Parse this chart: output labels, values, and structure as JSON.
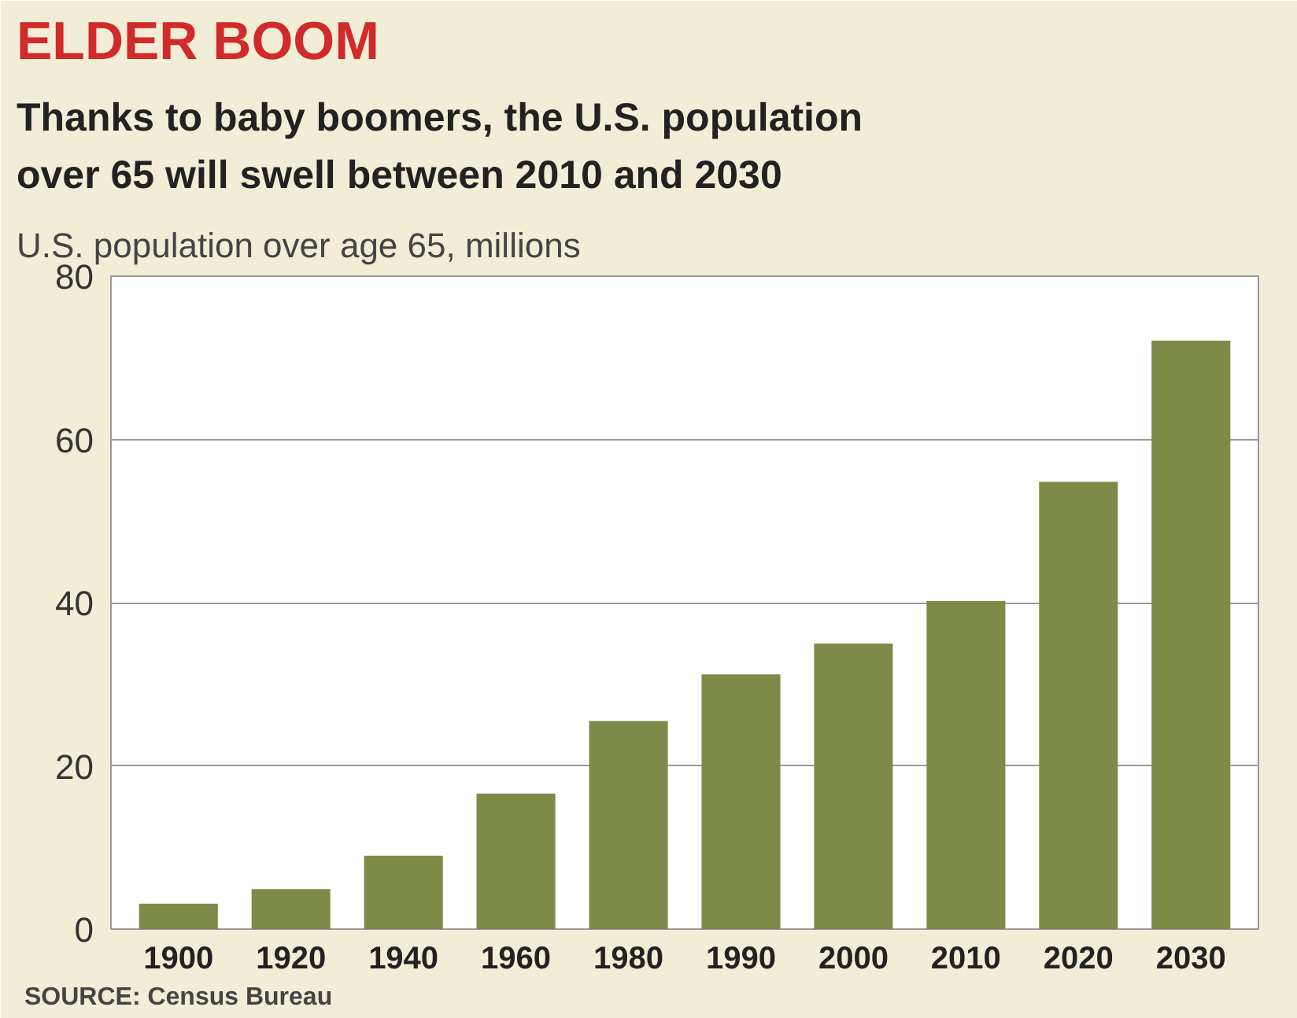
{
  "chart_data": {
    "type": "bar",
    "title": "ELDER BOOM",
    "subtitle": "Thanks to baby boomers, the U.S. population over 65 will swell between 2010 and 2030",
    "ylabel": "U.S. population over age 65, millions",
    "categories": [
      "1900",
      "1920",
      "1940",
      "1960",
      "1980",
      "1990",
      "2000",
      "2010",
      "2020",
      "2030"
    ],
    "values": [
      3.1,
      4.9,
      9.0,
      16.6,
      25.5,
      31.2,
      35.0,
      40.2,
      54.8,
      72.1
    ],
    "color": "#7d8a48",
    "ylim": [
      0,
      80
    ],
    "yticks": [
      0,
      20,
      40,
      60,
      80
    ],
    "grid": "y",
    "annotations": [
      "SOURCE: Census Bureau"
    ]
  }
}
